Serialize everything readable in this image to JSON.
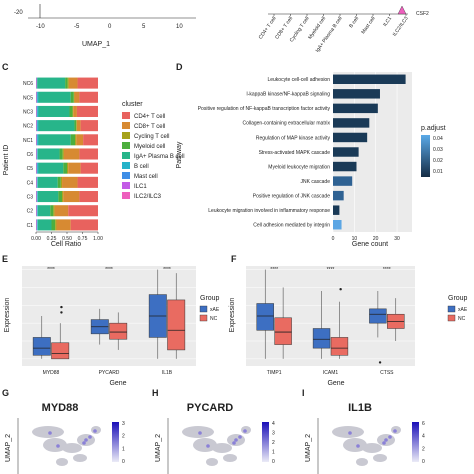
{
  "colors": {
    "cd4": "#e8625e",
    "cd8": "#d78a32",
    "cycling": "#a6a21a",
    "myeloid": "#4cae3e",
    "iga": "#27b58a",
    "bcell": "#26b3c9",
    "mast": "#3f8ee6",
    "ilc1": "#c35ce6",
    "ilc23": "#ee5fbd",
    "xae": "#3d6fc2",
    "nc": "#e96b61",
    "bar_dark": "#1a3a57",
    "bar_mid": "#2f6293",
    "bar_light": "#5ca6e4"
  },
  "top": {
    "xticks": [
      "-10",
      "-5",
      "0",
      "5",
      "10"
    ],
    "yticks": [
      "-20"
    ],
    "umap_label": "UMAP_1",
    "celltypes": [
      "CD4+ T cell",
      "CD8+ T cell",
      "Cycling T cell",
      "Myeloid cell",
      "IgA+ Plasma B cell",
      "B cell",
      "Mast cell",
      "ILC1",
      "ILC2/ILC3"
    ],
    "gene": "CSF2"
  },
  "panels": {
    "C": "C",
    "D": "D",
    "E": "E",
    "F": "F",
    "G": "G",
    "H": "H",
    "I": "I"
  },
  "chart_data": [
    {
      "type": "bar",
      "stacked": true,
      "horizontal": true,
      "ylabel": "Patient ID",
      "xlabel": "Cell Ratio",
      "xticks": [
        "0.00",
        "0.25",
        "0.50",
        "0.75",
        "1.00"
      ],
      "categories": [
        "NC6",
        "NC5",
        "NC3",
        "NC2",
        "NC1",
        "C6",
        "C5",
        "C4",
        "C3",
        "C2",
        "C1"
      ],
      "legend_title": "cluster",
      "legend": [
        "CD4+ T cell",
        "CD8+ T cell",
        "Cycling T cell",
        "Myeloid cell",
        "IgA+ Plasma B cell",
        "B cell",
        "Mast cell",
        "ILC1",
        "ILC2/ILC3"
      ],
      "series_order": [
        "ILC2/ILC3",
        "ILC1",
        "Mast cell",
        "B cell",
        "IgA+ Plasma B cell",
        "Myeloid cell",
        "Cycling T cell",
        "CD8+ T cell",
        "CD4+ T cell"
      ],
      "rows": [
        [
          0.01,
          0.0,
          0.01,
          0.0,
          0.45,
          0.04,
          0.02,
          0.14,
          0.33
        ],
        [
          0.01,
          0.0,
          0.01,
          0.02,
          0.52,
          0.05,
          0.01,
          0.08,
          0.3
        ],
        [
          0.01,
          0.0,
          0.01,
          0.02,
          0.5,
          0.05,
          0.01,
          0.06,
          0.34
        ],
        [
          0.01,
          0.0,
          0.01,
          0.02,
          0.58,
          0.03,
          0.01,
          0.06,
          0.28
        ],
        [
          0.01,
          0.0,
          0.01,
          0.02,
          0.52,
          0.07,
          0.02,
          0.11,
          0.24
        ],
        [
          0.01,
          0.0,
          0.01,
          0.01,
          0.35,
          0.05,
          0.02,
          0.25,
          0.3
        ],
        [
          0.01,
          0.0,
          0.01,
          0.02,
          0.4,
          0.06,
          0.02,
          0.2,
          0.28
        ],
        [
          0.01,
          0.0,
          0.01,
          0.01,
          0.32,
          0.05,
          0.02,
          0.25,
          0.33
        ],
        [
          0.01,
          0.0,
          0.01,
          0.01,
          0.33,
          0.06,
          0.02,
          0.26,
          0.3
        ],
        [
          0.01,
          0.0,
          0.01,
          0.01,
          0.2,
          0.05,
          0.02,
          0.22,
          0.48
        ],
        [
          0.01,
          0.0,
          0.01,
          0.01,
          0.22,
          0.06,
          0.02,
          0.23,
          0.44
        ]
      ]
    },
    {
      "type": "bar",
      "horizontal": true,
      "ylabel": "Pathway",
      "xlabel": "Gene count",
      "xticks": [
        "0",
        "10",
        "20",
        "30"
      ],
      "xlim": [
        0,
        37
      ],
      "legend_title": "p.adjust",
      "legend_ticks": [
        "0.04",
        "0.03",
        "0.02",
        "0.01"
      ],
      "categories": [
        "Leukocyte cell-cell adhesion",
        "I-kappaB kinase/NF-kappaB signaling",
        "Positive regulation of NF-kappaB transcription factor activity",
        "Collagen-containing extracellular matrix",
        "Regulation of MAP kinase activity",
        "Stress-activated MAPK cascade",
        "Myeloid leukocyte migration",
        "JNK cascade",
        "Positive regulation of JNK cascade",
        "Leukocyte migration involved in inflammatory response",
        "Cell adhesion mediated by integrin"
      ],
      "values": [
        34,
        22,
        21,
        17,
        16,
        12,
        11,
        9,
        5,
        3,
        4
      ],
      "padj": [
        0.002,
        0.003,
        0.004,
        0.005,
        0.006,
        0.008,
        0.01,
        0.013,
        0.018,
        0.005,
        0.045
      ]
    },
    {
      "type": "box",
      "ylabel": "Expression",
      "xlabel": "Gene",
      "categories": [
        "MYD88",
        "PYCARD",
        "IL1B"
      ],
      "significance": [
        "****",
        "****",
        "****"
      ],
      "legend_title": "Group",
      "legend": [
        "xAE",
        "NC"
      ],
      "ylim": [
        -0.4,
        5.2
      ],
      "boxes": [
        {
          "xAE": [
            0,
            0.2,
            0.6,
            1.2,
            2.4
          ],
          "NC": [
            0,
            0.0,
            0.3,
            0.9,
            2.0
          ],
          "out": [
            2.6,
            2.9
          ]
        },
        {
          "xAE": [
            0.8,
            1.4,
            1.8,
            2.2,
            2.8
          ],
          "NC": [
            0.5,
            1.1,
            1.5,
            2.0,
            2.6
          ]
        },
        {
          "xAE": [
            0,
            1.2,
            2.4,
            3.6,
            5.0
          ],
          "NC": [
            0,
            0.5,
            1.6,
            3.3,
            4.8
          ]
        }
      ]
    },
    {
      "type": "box",
      "ylabel": "Expression",
      "xlabel": "Gene",
      "categories": [
        "TIMP1",
        "ICAM1",
        "CTSS"
      ],
      "significance": [
        "****",
        "****",
        "****"
      ],
      "legend_title": "Group",
      "legend": [
        "xAE",
        "NC"
      ],
      "ylim": [
        -0.4,
        5.2
      ],
      "boxes": [
        {
          "xAE": [
            0,
            1.6,
            2.4,
            3.1,
            5.0
          ],
          "NC": [
            0,
            0.8,
            1.5,
            2.3,
            4.0
          ]
        },
        {
          "xAE": [
            0,
            0.6,
            1.1,
            1.7,
            3.8
          ],
          "NC": [
            0,
            0.2,
            0.6,
            1.2,
            3.2
          ],
          "out": [
            3.9
          ]
        },
        {
          "xAE": [
            1.2,
            2.0,
            2.5,
            2.8,
            3.8
          ],
          "NC": [
            1.0,
            1.7,
            2.1,
            2.5,
            3.4
          ],
          "out": [
            -0.2
          ]
        }
      ]
    }
  ],
  "umaps": [
    {
      "title": "MYD88",
      "ylabel": "UMAP_2",
      "scale": [
        "3",
        "2",
        "1",
        "0"
      ]
    },
    {
      "title": "PYCARD",
      "ylabel": "UMAP_2",
      "scale": [
        "4",
        "3",
        "2",
        "1",
        "0"
      ]
    },
    {
      "title": "IL1B",
      "ylabel": "UMAP_2",
      "scale": [
        "6",
        "4",
        "2",
        "0"
      ]
    }
  ]
}
